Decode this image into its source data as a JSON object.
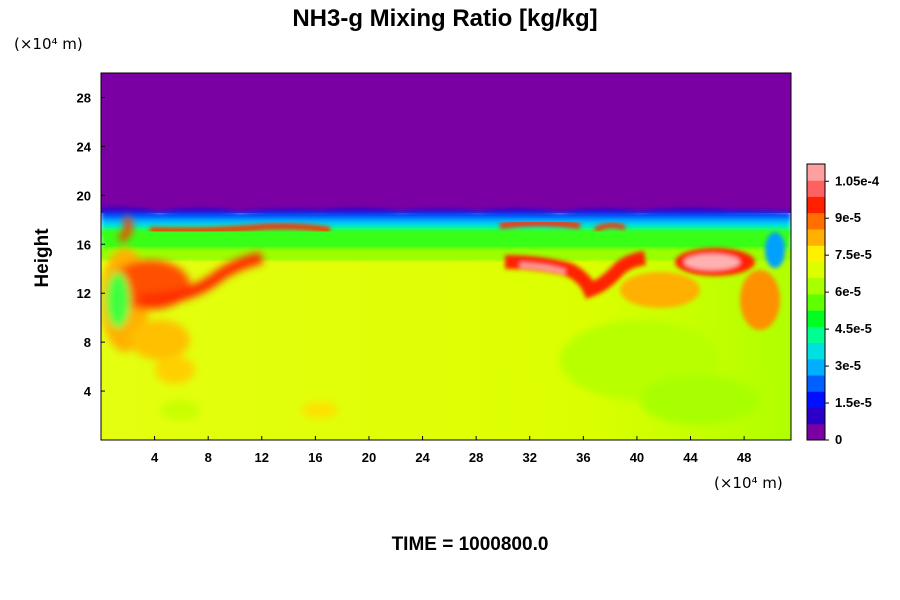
{
  "chart_data": {
    "type": "heatmap",
    "title": "NH3-g Mixing Ratio [kg/kg]",
    "ylabel": "Height",
    "y_unit": "(×10⁴ m)",
    "x_unit": "(×10⁴ m)",
    "footer": "TIME = 1000800.0",
    "xlim": [
      0,
      51.5
    ],
    "ylim": [
      0,
      30
    ],
    "x_ticks": [
      "4",
      "8",
      "12",
      "16",
      "20",
      "24",
      "28",
      "32",
      "36",
      "40",
      "44",
      "48"
    ],
    "y_ticks": [
      "4",
      "8",
      "12",
      "16",
      "20",
      "24",
      "28"
    ],
    "colorbar": {
      "min": 0,
      "max": 0.000112,
      "tick_labels": [
        "0",
        "1.5e-5",
        "3e-5",
        "4.5e-5",
        "6e-5",
        "7.5e-5",
        "9e-5",
        "1.05e-4"
      ],
      "tick_values": [
        0,
        1.5e-05,
        3e-05,
        4.5e-05,
        6e-05,
        7.5e-05,
        9e-05,
        0.000105
      ],
      "colors": [
        "#7a00a4",
        "#2a00c8",
        "#0010ff",
        "#0060ff",
        "#00b0ff",
        "#00e0e0",
        "#00ff90",
        "#00ff20",
        "#60ff00",
        "#a8ff00",
        "#dcff00",
        "#fff000",
        "#ffb000",
        "#ff7000",
        "#ff2000",
        "#ff6060",
        "#ffa0a0"
      ]
    },
    "regions": [
      {
        "value": 0,
        "desc": "upper atmosphere above ~18.5"
      },
      {
        "value": 6e-05,
        "desc": "layer ~15.5-18"
      },
      {
        "value": 7.8e-05,
        "desc": "lower region 0-15"
      },
      {
        "value": 9.5e-05,
        "desc": "band ~17 x 4-14"
      },
      {
        "value": 9.8e-05,
        "desc": "plume ~9-15 x 0-10"
      },
      {
        "value": 0.000108,
        "desc": "max ~13.5-15 x 42-47"
      },
      {
        "value": 0.000104,
        "desc": "patch ~12.5-14.5 x 31-36"
      }
    ]
  }
}
